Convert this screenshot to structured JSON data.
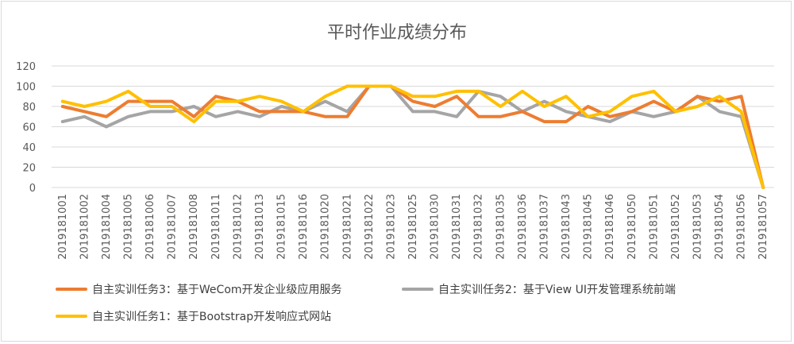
{
  "chart_data": {
    "type": "line",
    "title": "平时作业成绩分布",
    "xlabel": "",
    "ylabel": "",
    "ylim": [
      0,
      120
    ],
    "yticks": [
      0,
      20,
      40,
      60,
      80,
      100,
      120
    ],
    "grid": true,
    "legend_position": "bottom",
    "categories": [
      "2019181001",
      "2019181002",
      "2019181004",
      "2019181005",
      "2019181006",
      "2019181007",
      "2019181008",
      "2019181011",
      "2019181012",
      "2019181013",
      "2019181015",
      "2019181016",
      "2019181020",
      "2019181021",
      "2019181022",
      "2019181023",
      "2019181025",
      "2019181030",
      "2019181031",
      "2019181032",
      "2019181035",
      "2019181036",
      "2019181037",
      "2019181043",
      "2019181045",
      "2019181046",
      "2019181050",
      "2019181051",
      "2019181052",
      "2019181053",
      "2019181054",
      "2019181056",
      "2019181057"
    ],
    "series": [
      {
        "name": "自主实训任务3：基于WeCom开发企业级应用服务",
        "color": "#ed7d31",
        "values": [
          80,
          75,
          70,
          85,
          85,
          85,
          70,
          90,
          85,
          75,
          75,
          75,
          70,
          70,
          100,
          100,
          85,
          80,
          90,
          70,
          70,
          75,
          65,
          65,
          80,
          70,
          75,
          85,
          75,
          90,
          85,
          90,
          0
        ]
      },
      {
        "name": "自主实训任务2：基于View UI开发管理系统前端",
        "color": "#a5a5a5",
        "values": [
          65,
          70,
          60,
          70,
          75,
          75,
          80,
          70,
          75,
          70,
          80,
          75,
          85,
          75,
          100,
          100,
          75,
          75,
          70,
          95,
          90,
          75,
          85,
          75,
          70,
          65,
          75,
          70,
          75,
          90,
          75,
          70,
          0
        ]
      },
      {
        "name": "自主实训任务1：基于Bootstrap开发响应式网站",
        "color": "#ffc000",
        "values": [
          85,
          80,
          85,
          95,
          80,
          80,
          65,
          85,
          85,
          90,
          85,
          75,
          90,
          100,
          100,
          100,
          90,
          90,
          95,
          95,
          80,
          95,
          80,
          90,
          70,
          75,
          90,
          95,
          75,
          80,
          90,
          75,
          0
        ]
      }
    ]
  }
}
